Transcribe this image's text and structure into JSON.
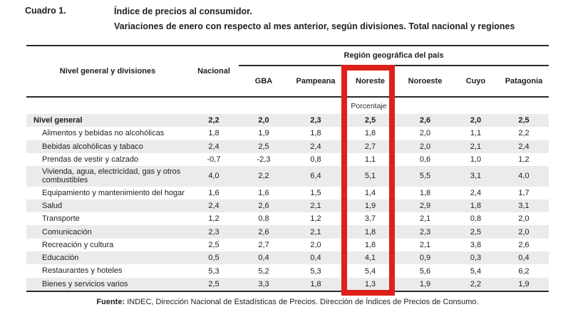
{
  "doc": {
    "cuadro_label": "Cuadro 1.",
    "title_line1": "Índice de precios al consumidor.",
    "title_line2": "Variaciones de enero con respecto al mes anterior, según divisiones. Total nacional y regiones"
  },
  "table": {
    "row_header": "Nivel general y divisiones",
    "nacional_header": "Nacional",
    "region_group_header": "Región geográfica del país",
    "regions": [
      "GBA",
      "Pampeana",
      "Noreste",
      "Noroeste",
      "Cuyo",
      "Patagonia"
    ],
    "unit_label": "Porcentaje",
    "highlight": {
      "column": "Noreste",
      "color": "#de201a"
    },
    "rows": [
      {
        "label": "Nivel general",
        "emphasis": true,
        "values": [
          "2,2",
          "2,0",
          "2,3",
          "2,5",
          "2,6",
          "2,0",
          "2,5"
        ]
      },
      {
        "label": "Alimentos y bebidas no alcohólicas",
        "values": [
          "1,8",
          "1,9",
          "1,8",
          "1,8",
          "2,0",
          "1,1",
          "2,2"
        ]
      },
      {
        "label": "Bebidas alcohólicas y tabaco",
        "values": [
          "2,4",
          "2,5",
          "2,4",
          "2,7",
          "2,0",
          "2,1",
          "2,4"
        ]
      },
      {
        "label": "Prendas de vestir y calzado",
        "values": [
          "-0,7",
          "-2,3",
          "0,8",
          "1,1",
          "0,6",
          "1,0",
          "1,2"
        ]
      },
      {
        "label": "Vivienda, agua, electricidad, gas y otros combustibles",
        "values": [
          "4,0",
          "2,2",
          "6,4",
          "5,1",
          "5,5",
          "3,1",
          "4,0"
        ]
      },
      {
        "label": "Equipamiento y mantenimiento del hogar",
        "values": [
          "1,6",
          "1,6",
          "1,5",
          "1,4",
          "1,8",
          "2,4",
          "1,7"
        ]
      },
      {
        "label": "Salud",
        "values": [
          "2,4",
          "2,6",
          "2,1",
          "1,9",
          "2,9",
          "1,8",
          "3,1"
        ]
      },
      {
        "label": "Transporte",
        "values": [
          "1,2",
          "0,8",
          "1,2",
          "3,7",
          "2,1",
          "0,8",
          "2,0"
        ]
      },
      {
        "label": "Comunicación",
        "values": [
          "2,3",
          "2,6",
          "2,1",
          "1,8",
          "2,3",
          "2,5",
          "2,0"
        ]
      },
      {
        "label": "Recreación y cultura",
        "values": [
          "2,5",
          "2,7",
          "2,0",
          "1,8",
          "2,1",
          "3,8",
          "2,6"
        ]
      },
      {
        "label": "Educación",
        "values": [
          "0,5",
          "0,4",
          "0,4",
          "4,1",
          "0,9",
          "0,3",
          "0,4"
        ]
      },
      {
        "label": "Restaurantes y hoteles",
        "values": [
          "5,3",
          "5,2",
          "5,3",
          "5,4",
          "5,6",
          "5,4",
          "6,2"
        ]
      },
      {
        "label": "Bienes y servicios varios",
        "values": [
          "2,5",
          "3,3",
          "1,8",
          "1,3",
          "1,9",
          "2,2",
          "1,9"
        ]
      }
    ]
  },
  "footer": {
    "prefix": "Fuente:",
    "text": " INDEC, Dirección Nacional de Estadísticas de Precios. Dirección de Índices de Precios de Consumo."
  }
}
